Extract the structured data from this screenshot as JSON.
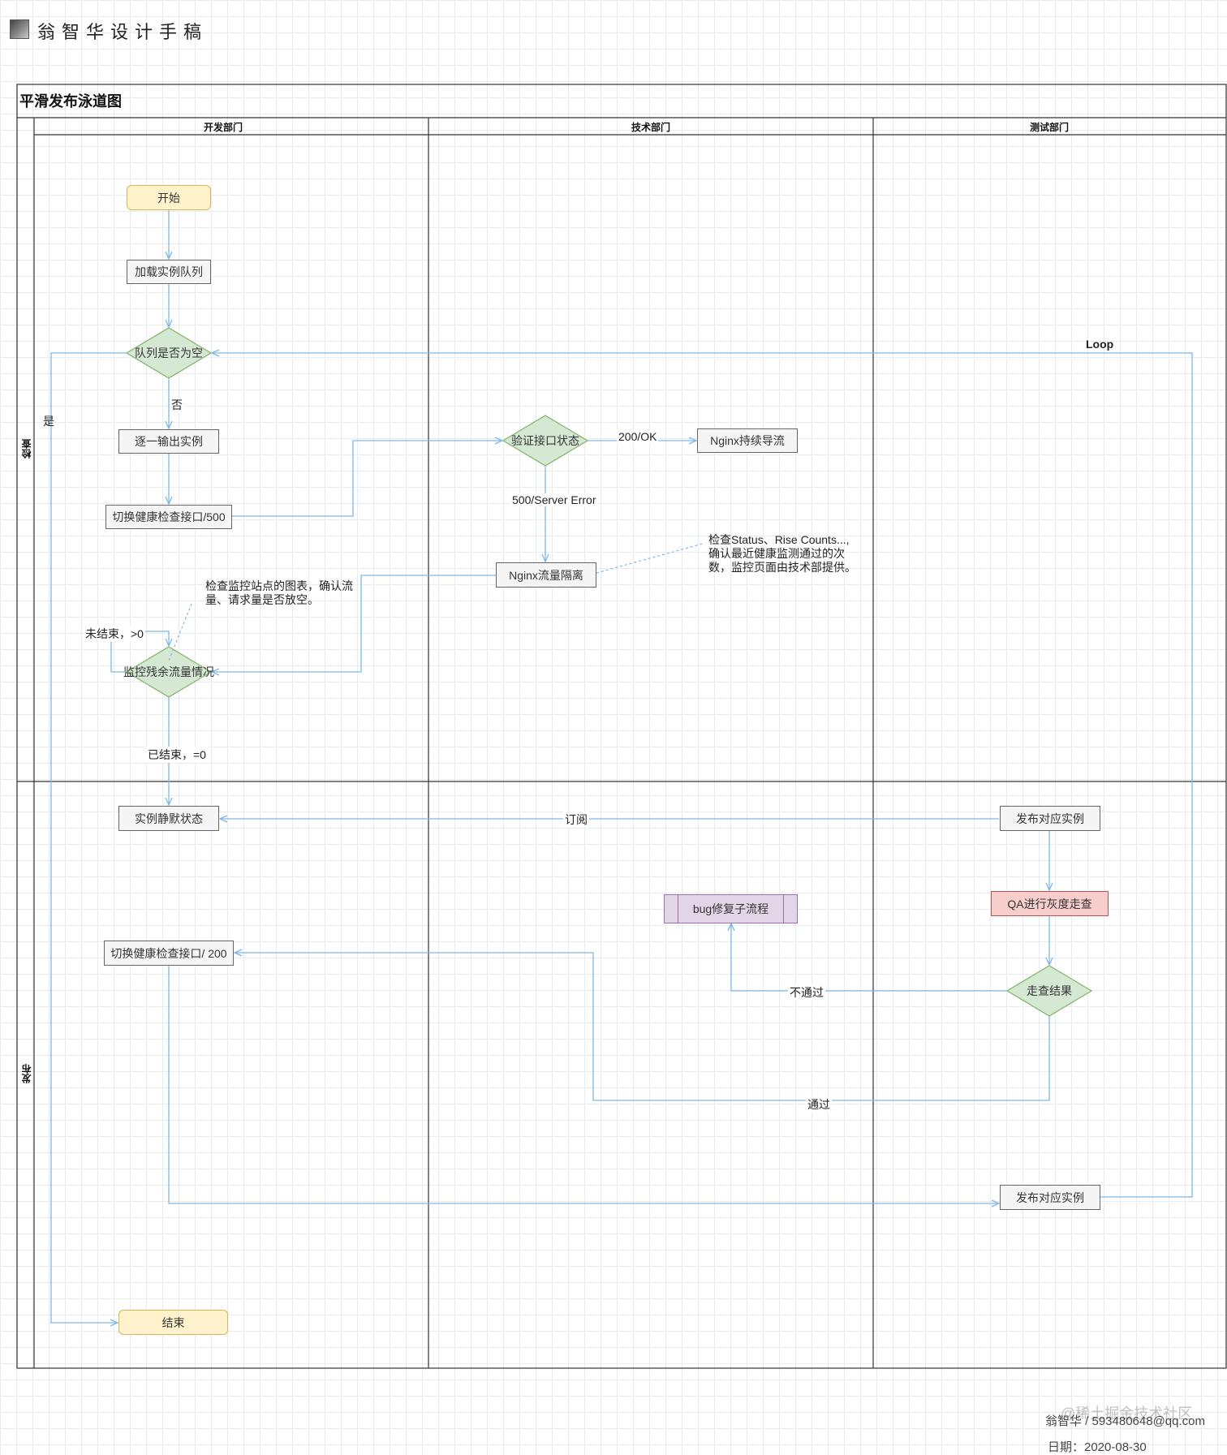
{
  "header": {
    "title": "翁智华设计手稿"
  },
  "pool": {
    "title": "平滑发布泳道图",
    "lanes": [
      "开发部门",
      "技术部门",
      "测试部门"
    ],
    "rows": [
      "检查",
      "发布"
    ]
  },
  "nodes": {
    "start": "开始",
    "load_queue": "加载实例队列",
    "queue_empty": "队列是否为空",
    "output_instance": "逐一输出实例",
    "switch_health_500": "切换健康检查接口/500",
    "monitor_traffic": "监控残余流量情况",
    "verify_status": "验证接口状态",
    "nginx_continue": "Nginx持续导流",
    "nginx_isolate": "Nginx流量隔离",
    "instance_silent": "实例静默状态",
    "publish_instance_1": "发布对应实例",
    "bug_fix": "bug修复子流程",
    "qa_gray": "QA进行灰度走查",
    "walk_result": "走查结果",
    "switch_health_200": "切换健康检查接口/ 200",
    "publish_instance_2": "发布对应实例",
    "end": "结束"
  },
  "edge_labels": {
    "loop": "Loop",
    "yes": "是",
    "no": "否",
    "ok": "200/OK",
    "server_error": "500/Server Error",
    "not_finished": "未结束，>0",
    "finished": "已结束，=0",
    "subscribe": "订阅",
    "not_pass": "不通过",
    "pass": "通过"
  },
  "notes": {
    "check_status": [
      "检查Status、Rise Counts...,",
      "确认最近健康监测通过的次",
      "数，监控页面由技术部提供。"
    ],
    "check_monitor": [
      "检查监控站点的图表，确认流",
      "量、请求量是否放空。"
    ]
  },
  "footer": {
    "author": "翁智华 / 593480648@qq.com",
    "date": "日期：2020-08-30",
    "watermark": "@稀土掘金技术社区"
  },
  "colors": {
    "edge": "#7eb6e8",
    "pool_border": "#333333",
    "decision_fill": "#d5e8d4",
    "decision_stroke": "#82b366",
    "terminal_fill": "#fff2cc",
    "qa_fill": "#f8cecc",
    "subprocess_fill": "#e1d5e7"
  }
}
